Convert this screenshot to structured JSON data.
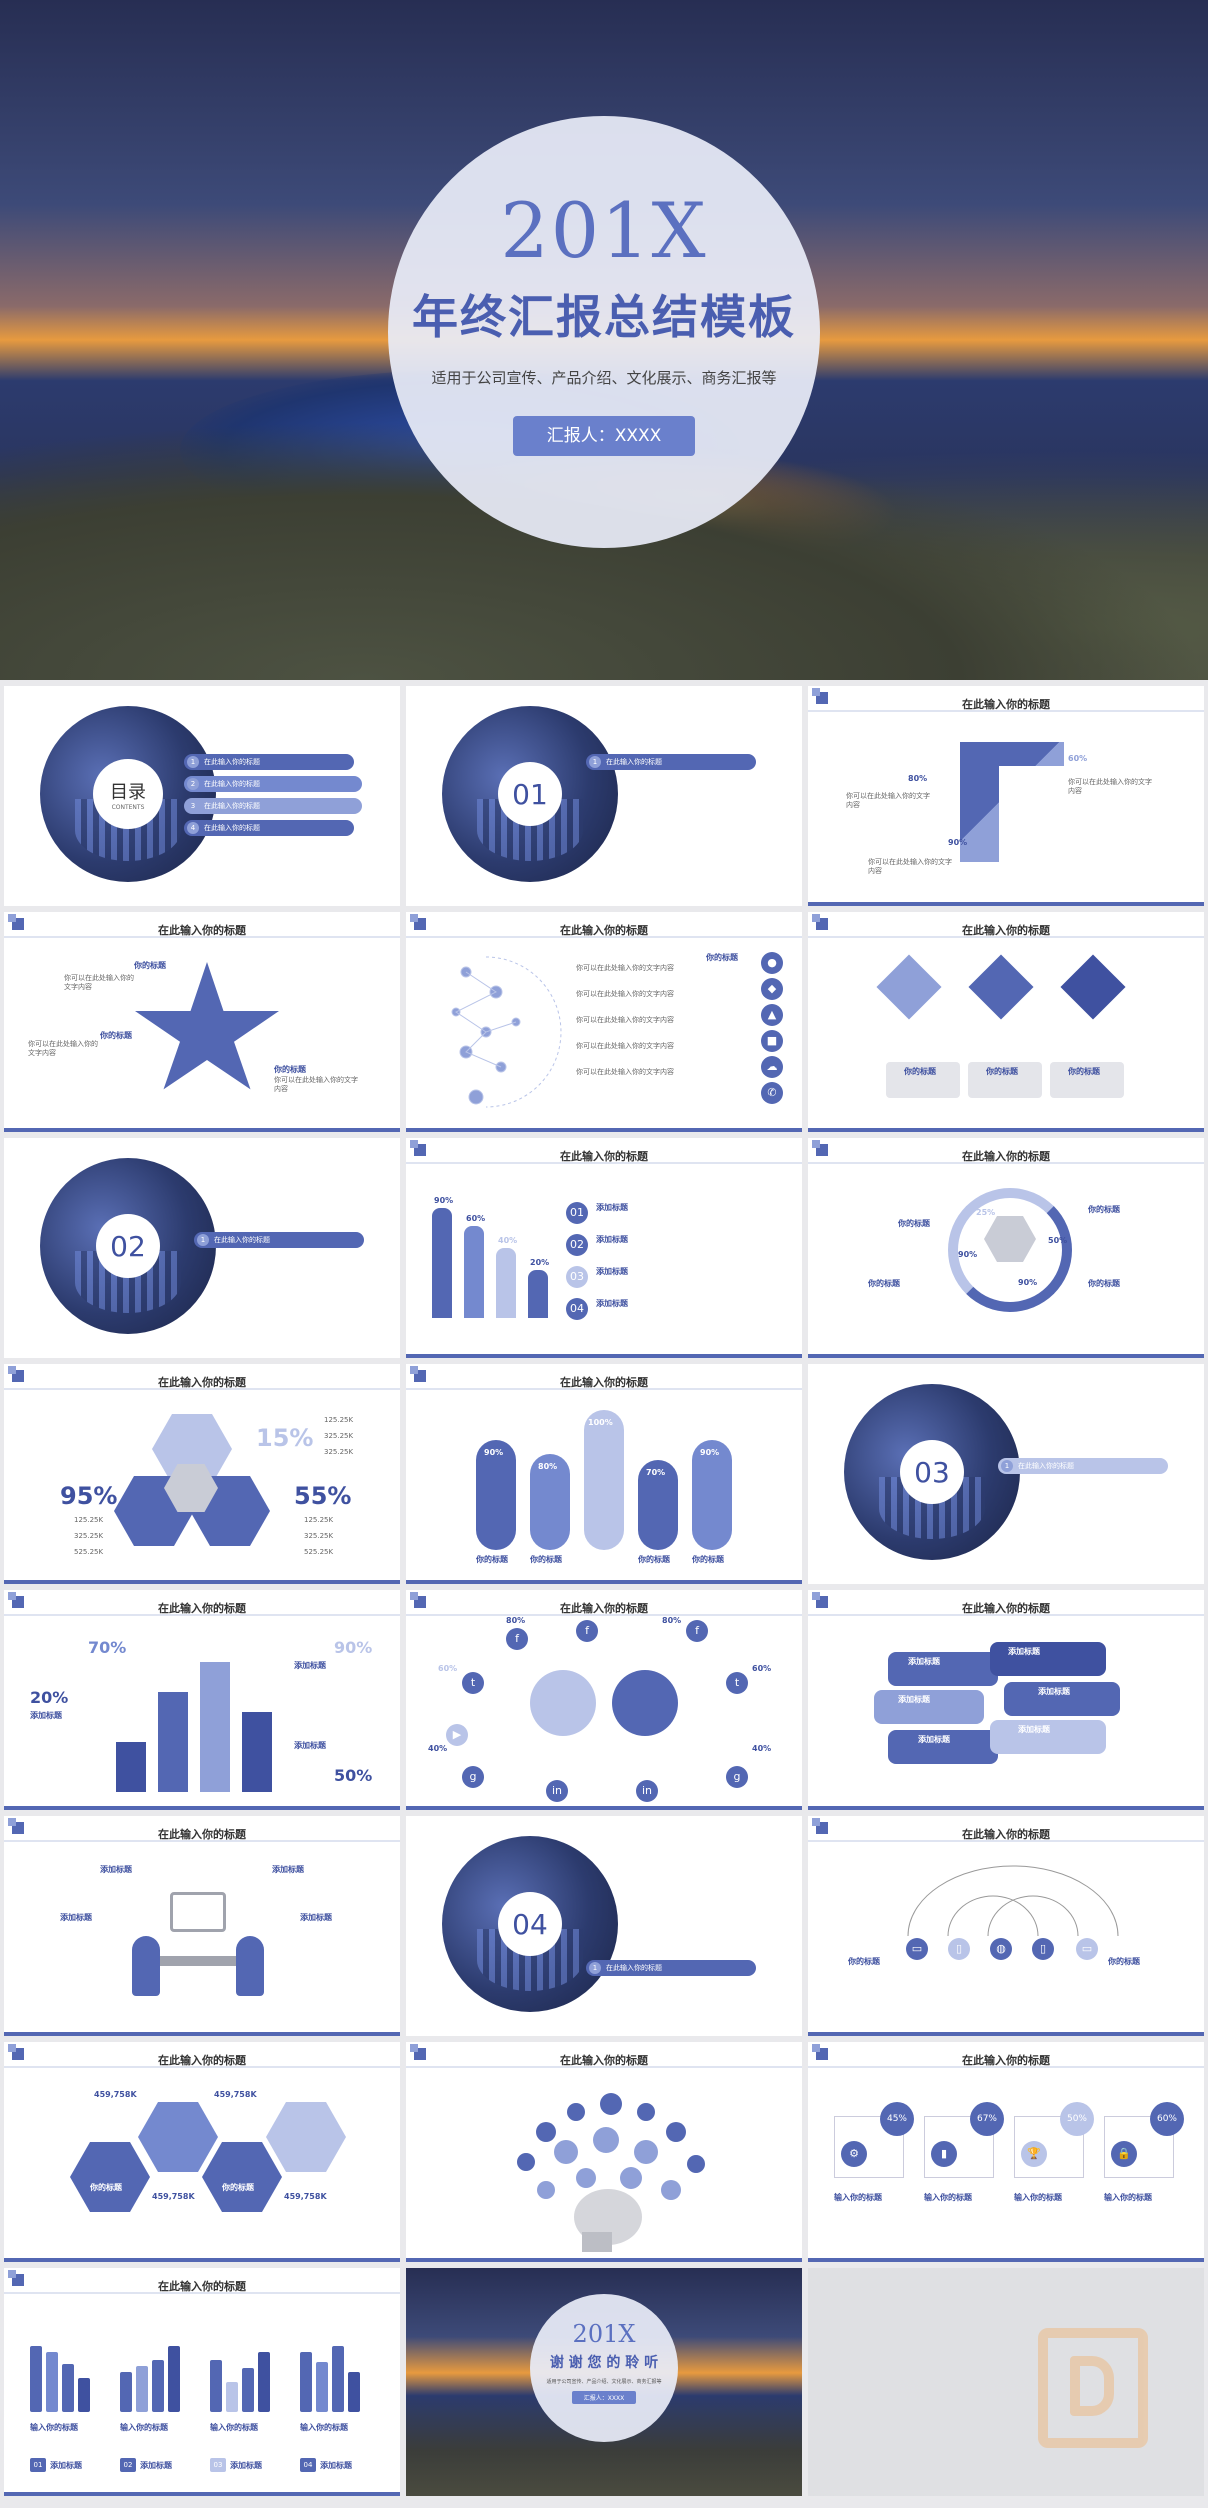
{
  "cover": {
    "year": "201X",
    "title": "年终汇报总结模板",
    "subtitle": "适用于公司宣传、产品介绍、文化展示、商务汇报等",
    "reporter_button": "汇报人：XXXX"
  },
  "common": {
    "slide_title": "在此输入你的标题",
    "item_title": "你的标题",
    "add_title": "添加标题",
    "input_title": "输入你的标题",
    "filler": "你可以在此处输入你的文字内容"
  },
  "contents": {
    "label": "目录",
    "sub": "CONTENTS",
    "items": [
      "在此输入你的标题",
      "在此输入你的标题",
      "在此输入你的标题",
      "在此输入你的标题"
    ]
  },
  "sections": [
    "01",
    "02",
    "03",
    "04"
  ],
  "section_item": "在此输入你的标题",
  "percents": {
    "p80": "80%",
    "p90": "90%",
    "p60": "60%",
    "p50": "50%",
    "p40": "40%",
    "p25": "25%",
    "p95": "95%",
    "p15": "15%",
    "p55": "55%",
    "p70": "70%",
    "p20": "20%",
    "p100": "100%",
    "p45": "45%",
    "p67": "67%"
  },
  "values": {
    "v1": "125.25K",
    "v2": "325.25K",
    "v3": "525.25K",
    "h1": "459,758K"
  },
  "thanks": {
    "year": "201X",
    "title": "谢 谢 您 的 聆 听",
    "subtitle": "适用于公司宣传、产品介绍、文化展示、商务汇报等",
    "reporter": "汇报人：XXXX"
  },
  "colors": {
    "primary": "#5367b3",
    "light": "#8fa0d8",
    "pale": "#b9c4e8",
    "dark": "#3f51a0"
  }
}
